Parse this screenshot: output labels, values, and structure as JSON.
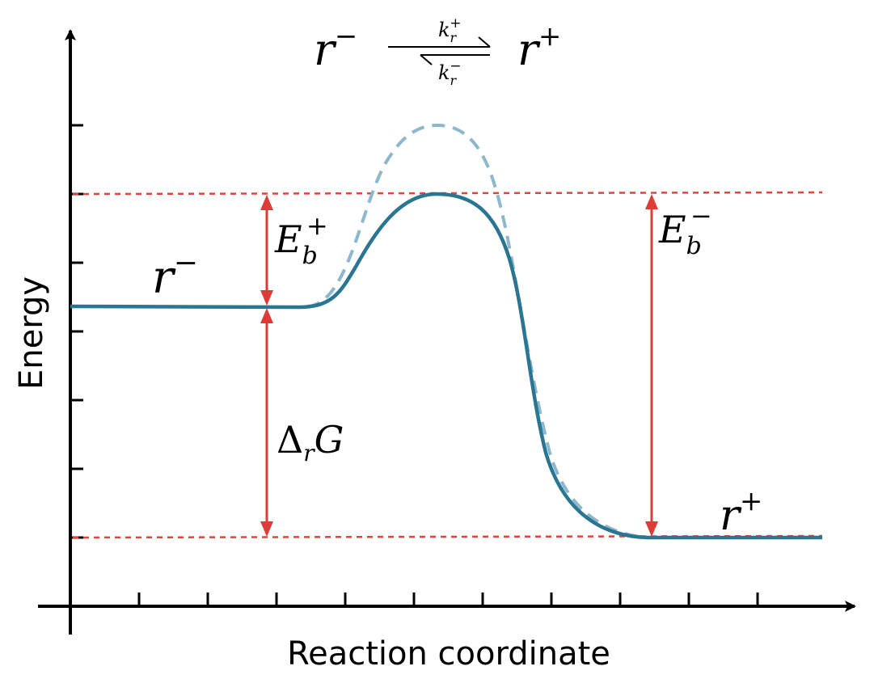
{
  "axes": {
    "x_label": "Reaction coordinate",
    "y_label": "Energy"
  },
  "reaction": {
    "reactant": "r",
    "reactant_sup": "−",
    "product": "r",
    "product_sup": "+",
    "forward_rate": "k",
    "forward_rate_sub": "r",
    "forward_rate_sup": "+",
    "backward_rate": "k",
    "backward_rate_sub": "r",
    "backward_rate_sup": "−"
  },
  "states": {
    "reactant_label": "r",
    "reactant_label_sup": "−",
    "product_label": "r",
    "product_label_sup": "+"
  },
  "annotations": {
    "forward_barrier": "E",
    "forward_barrier_sub": "b",
    "forward_barrier_sup": "+",
    "backward_barrier": "E",
    "backward_barrier_sub": "b",
    "backward_barrier_sup": "−",
    "reaction_free_energy_delta": "Δ",
    "reaction_free_energy_sub": "r",
    "reaction_free_energy": "G"
  },
  "colors": {
    "curve": "#2a7592",
    "catalyzed_curve": "#8db7cc",
    "reference_lines": "#e0443c",
    "arrows": "#dd3c36",
    "axes": "#000000"
  }
}
